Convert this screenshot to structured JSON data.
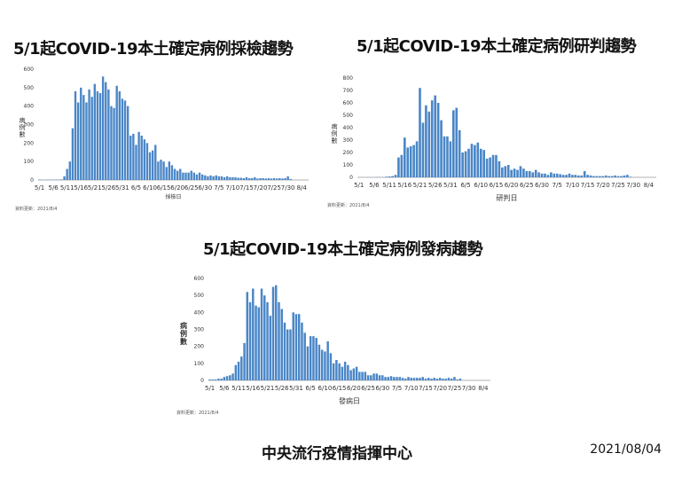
{
  "chart_data": [
    {
      "type": "bar",
      "title": "5/1起COVID-19本土確定病例採檢趨勢",
      "xlabel": "採檢日",
      "ylabel": "病例數",
      "source": "資料更新：2021/8/4",
      "ylim": [
        0,
        600
      ],
      "yticks": [
        0,
        100,
        200,
        300,
        400,
        500,
        600
      ],
      "xtick_labels": [
        "5/1",
        "5/6",
        "5/11",
        "5/16",
        "5/21",
        "5/26",
        "5/31",
        "6/5",
        "6/10",
        "6/15",
        "6/20",
        "6/25",
        "6/30",
        "7/5",
        "7/10",
        "7/15",
        "7/20",
        "7/25",
        "7/30",
        "8/4"
      ],
      "start_date": "5/1",
      "color": "#4a86c7",
      "values": [
        2,
        1,
        1,
        2,
        1,
        2,
        2,
        2,
        3,
        20,
        60,
        100,
        280,
        480,
        420,
        500,
        460,
        420,
        490,
        450,
        520,
        480,
        470,
        560,
        530,
        490,
        400,
        390,
        510,
        480,
        440,
        430,
        400,
        240,
        250,
        190,
        260,
        240,
        220,
        200,
        150,
        160,
        190,
        100,
        110,
        100,
        70,
        100,
        80,
        60,
        50,
        60,
        40,
        40,
        40,
        50,
        40,
        30,
        40,
        30,
        25,
        20,
        25,
        20,
        25,
        20,
        20,
        15,
        20,
        15,
        15,
        15,
        12,
        12,
        10,
        15,
        10,
        10,
        15,
        8,
        10,
        10,
        8,
        10,
        8,
        10,
        8,
        10,
        8,
        10,
        20,
        5
      ]
    },
    {
      "type": "bar",
      "title": "5/1起COVID-19本土確定病例研判趨勢",
      "xlabel": "研判日",
      "ylabel": "病例數",
      "source": "資料更新：2021/8/4",
      "ylim": [
        0,
        800
      ],
      "yticks": [
        0,
        100,
        200,
        300,
        400,
        500,
        600,
        700,
        800
      ],
      "xtick_labels": [
        "5/1",
        "5/6",
        "5/11",
        "5/16",
        "5/21",
        "5/26",
        "5/31",
        "6/5",
        "6/10",
        "6/15",
        "6/20",
        "6/25",
        "6/30",
        "7/5",
        "7/10",
        "7/15",
        "7/20",
        "7/25",
        "7/30",
        "8/4"
      ],
      "start_date": "5/1",
      "color": "#4a86c7",
      "values": [
        0,
        0,
        0,
        1,
        0,
        0,
        2,
        1,
        1,
        5,
        7,
        10,
        20,
        160,
        180,
        320,
        240,
        250,
        260,
        290,
        720,
        440,
        580,
        530,
        620,
        660,
        600,
        460,
        330,
        330,
        290,
        540,
        560,
        380,
        200,
        210,
        230,
        270,
        260,
        280,
        230,
        220,
        150,
        160,
        180,
        180,
        130,
        80,
        90,
        100,
        60,
        70,
        60,
        90,
        70,
        50,
        50,
        40,
        60,
        40,
        30,
        30,
        20,
        40,
        30,
        30,
        25,
        20,
        20,
        30,
        20,
        20,
        15,
        15,
        50,
        20,
        15,
        10,
        10,
        10,
        10,
        15,
        10,
        10,
        15,
        10,
        10,
        15,
        20,
        5
      ]
    },
    {
      "type": "bar",
      "title": "5/1起COVID-19本土確定病例發病趨勢",
      "xlabel": "發病日",
      "ylabel": "病例數",
      "source": "資料更新：2021/8/4",
      "ylim": [
        0,
        600
      ],
      "yticks": [
        0,
        100,
        200,
        300,
        400,
        500,
        600
      ],
      "xtick_labels": [
        "5/1",
        "5/6",
        "5/11",
        "5/16",
        "5/21",
        "5/26",
        "5/31",
        "6/5",
        "6/10",
        "6/15",
        "6/20",
        "6/25",
        "6/30",
        "7/5",
        "7/10",
        "7/15",
        "7/20",
        "7/25",
        "7/30",
        "8/4"
      ],
      "start_date": "5/1",
      "color": "#4a86c7",
      "values": [
        5,
        5,
        5,
        10,
        10,
        20,
        25,
        30,
        40,
        90,
        110,
        140,
        220,
        520,
        460,
        540,
        440,
        430,
        540,
        500,
        460,
        380,
        550,
        560,
        460,
        420,
        340,
        300,
        300,
        400,
        390,
        390,
        340,
        280,
        200,
        260,
        260,
        250,
        210,
        180,
        170,
        230,
        160,
        100,
        120,
        100,
        80,
        110,
        90,
        60,
        70,
        80,
        50,
        50,
        50,
        30,
        30,
        40,
        40,
        30,
        30,
        20,
        20,
        25,
        20,
        20,
        20,
        15,
        10,
        20,
        15,
        15,
        15,
        15,
        20,
        10,
        15,
        10,
        15,
        10,
        15,
        10,
        10,
        15,
        10,
        20,
        5,
        10
      ]
    }
  ],
  "footer": {
    "org": "中央流行疫情指揮中心",
    "date": "2021/08/04"
  }
}
